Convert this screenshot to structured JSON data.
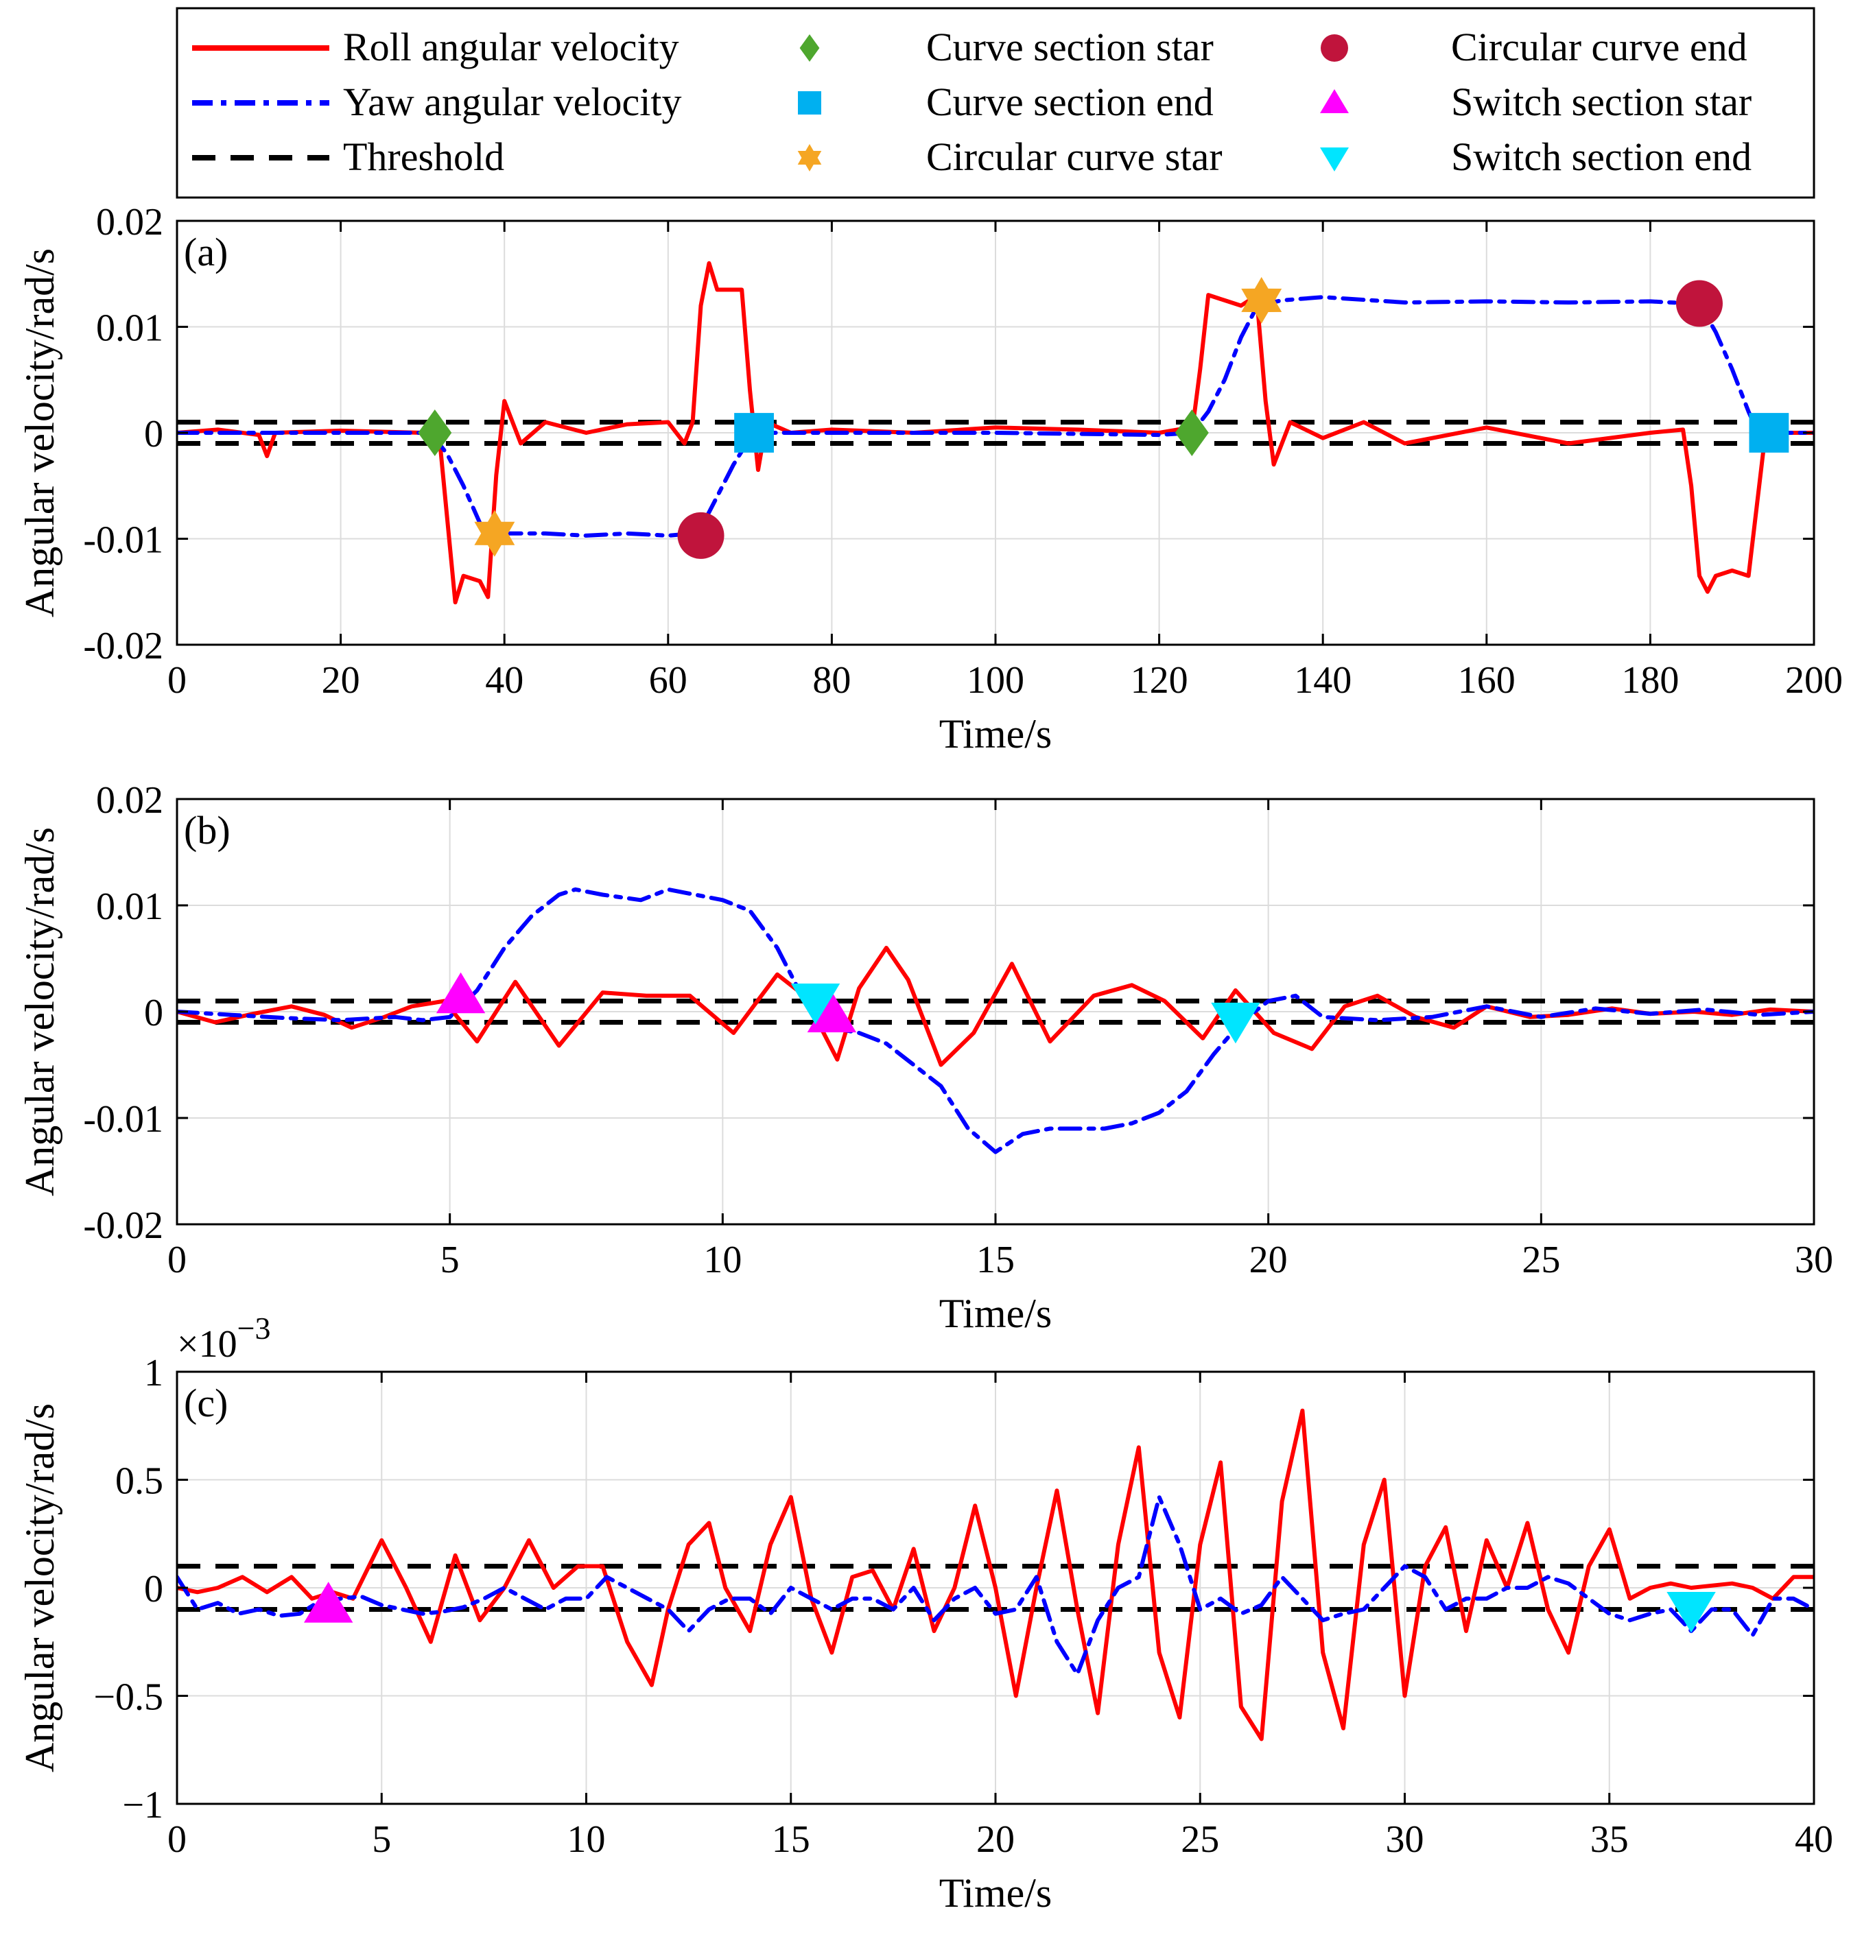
{
  "legend": {
    "entries": [
      {
        "label": "Roll angular velocity",
        "kind": "line",
        "color": "#ff0000",
        "dash": "solid"
      },
      {
        "label": "Yaw angular velocity",
        "kind": "line",
        "color": "#0000ff",
        "dash": "dashdot"
      },
      {
        "label": "Threshold",
        "kind": "line",
        "color": "#000000",
        "dash": "dashed"
      },
      {
        "label": "Curve section star",
        "kind": "marker",
        "marker": "diamond",
        "color": "#4ea72e"
      },
      {
        "label": "Curve section end",
        "kind": "marker",
        "marker": "square",
        "color": "#00b0f0"
      },
      {
        "label": "Circular curve star",
        "kind": "marker",
        "marker": "hexagram",
        "color": "#f5a623"
      },
      {
        "label": "Circular curve end",
        "kind": "marker",
        "marker": "circle",
        "color": "#c0143c"
      },
      {
        "label": "Switch section star",
        "kind": "marker",
        "marker": "triangle-up",
        "color": "#ff00ff"
      },
      {
        "label": "Switch section end",
        "kind": "marker",
        "marker": "triangle-down",
        "color": "#00e5ff"
      }
    ]
  },
  "chart_data": [
    {
      "type": "line",
      "panel_label": "(a)",
      "xlabel": "Time/s",
      "ylabel": "Angular velocity/rad/s",
      "xlim": [
        0,
        200
      ],
      "ylim": [
        -0.02,
        0.02
      ],
      "xticks": [
        0,
        20,
        40,
        60,
        80,
        100,
        120,
        140,
        160,
        180,
        200
      ],
      "xtick_labels": [
        "0",
        "20",
        "40",
        "60",
        "80",
        "100",
        "120",
        "140",
        "160",
        "180",
        "200"
      ],
      "yticks": [
        -0.02,
        -0.01,
        0,
        0.01,
        0.02
      ],
      "ytick_labels": [
        "-0.02",
        "-0.01",
        "0",
        "0.01",
        "0.02"
      ],
      "grid": true,
      "thresholds": [
        0.001,
        -0.001
      ],
      "series": [
        {
          "name": "Roll angular velocity",
          "color": "#ff0000",
          "style": "solid",
          "x": [
            0,
            5,
            10,
            11,
            12,
            20,
            30,
            31,
            32,
            33,
            34,
            35,
            37,
            38,
            39,
            40,
            42,
            45,
            50,
            55,
            60,
            62,
            63,
            64,
            65,
            66,
            67,
            69,
            70,
            71,
            72,
            75,
            80,
            90,
            100,
            110,
            120,
            123,
            124,
            125,
            126,
            128,
            130,
            131,
            132,
            133,
            134,
            136,
            140,
            145,
            150,
            160,
            170,
            180,
            184,
            185,
            186,
            187,
            188,
            190,
            192,
            193,
            194,
            195,
            196,
            200
          ],
          "y": [
            0,
            0.0003,
            -0.0002,
            -0.0022,
            0,
            0.0002,
            0,
            0.0001,
            0,
            -0.008,
            -0.016,
            -0.0135,
            -0.014,
            -0.0155,
            -0.004,
            0.003,
            -0.001,
            0.001,
            0,
            0.0008,
            0.001,
            -0.001,
            0.001,
            0.012,
            0.016,
            0.0135,
            0.0135,
            0.0135,
            0.004,
            -0.0035,
            0.001,
            0,
            0.0003,
            0,
            0.0005,
            0.0003,
            0,
            0.0004,
            0,
            0.006,
            0.013,
            0.0125,
            0.012,
            0.0125,
            0.012,
            0.003,
            -0.003,
            0.001,
            -0.0005,
            0.001,
            -0.001,
            0.0005,
            -0.001,
            0,
            0.0003,
            -0.005,
            -0.0135,
            -0.015,
            -0.0135,
            -0.013,
            -0.0135,
            -0.007,
            -0.0005,
            0.0005,
            0,
            0
          ]
        },
        {
          "name": "Yaw angular velocity",
          "color": "#0000ff",
          "style": "dashdot",
          "x": [
            0,
            20,
            31,
            33,
            35,
            37,
            38,
            40,
            45,
            50,
            55,
            60,
            63,
            64,
            66,
            68,
            70,
            71,
            80,
            100,
            120,
            124,
            126,
            128,
            130,
            132,
            135,
            140,
            150,
            160,
            170,
            180,
            185,
            186,
            188,
            190,
            192,
            193,
            194,
            200
          ],
          "y": [
            0,
            0,
            0,
            -0.002,
            -0.005,
            -0.0085,
            -0.0095,
            -0.0095,
            -0.0095,
            -0.0097,
            -0.0095,
            -0.0097,
            -0.0095,
            -0.009,
            -0.006,
            -0.003,
            -0.0005,
            0,
            0,
            0,
            -0.0002,
            0,
            0.002,
            0.005,
            0.009,
            0.012,
            0.0125,
            0.0128,
            0.0123,
            0.0124,
            0.0123,
            0.0124,
            0.0122,
            0.0122,
            0.0095,
            0.006,
            0.002,
            0.0003,
            0,
            0
          ]
        }
      ],
      "markers": [
        {
          "legend": "Curve section star",
          "x": [
            31.5,
            124
          ],
          "y": [
            0,
            0
          ]
        },
        {
          "legend": "Circular curve star",
          "x": [
            38.8,
            132.5
          ],
          "y": [
            -0.0095,
            0.0125
          ]
        },
        {
          "legend": "Circular curve end",
          "x": [
            64,
            186
          ],
          "y": [
            -0.0097,
            0.0122
          ]
        },
        {
          "legend": "Curve section end",
          "x": [
            70.5,
            194.5
          ],
          "y": [
            0,
            0
          ]
        }
      ]
    },
    {
      "type": "line",
      "panel_label": "(b)",
      "xlabel": "Time/s",
      "ylabel": "Angular velocity/rad/s",
      "xlim": [
        0,
        30
      ],
      "ylim": [
        -0.02,
        0.02
      ],
      "xticks": [
        0,
        5,
        10,
        15,
        20,
        25,
        30
      ],
      "xtick_labels": [
        "0",
        "5",
        "10",
        "15",
        "20",
        "25",
        "30"
      ],
      "yticks": [
        -0.02,
        -0.01,
        0,
        0.01,
        0.02
      ],
      "ytick_labels": [
        "-0.02",
        "-0.01",
        "0",
        "0.01",
        "0.02"
      ],
      "grid": true,
      "thresholds": [
        0.001,
        -0.001
      ],
      "series": [
        {
          "name": "Roll angular velocity",
          "color": "#ff0000",
          "style": "solid",
          "x": [
            0,
            0.7,
            1.4,
            2.1,
            2.7,
            3.2,
            3.8,
            4.3,
            4.9,
            5.5,
            6.2,
            7.0,
            7.8,
            8.6,
            9.4,
            10.2,
            11.0,
            11.5,
            12.1,
            12.5,
            13.0,
            13.4,
            14.0,
            14.6,
            15.3,
            16.0,
            16.8,
            17.5,
            18.1,
            18.8,
            19.4,
            20.1,
            20.8,
            21.4,
            22.0,
            22.7,
            23.4,
            24.0,
            24.8,
            25.5,
            26.3,
            27.0,
            27.8,
            28.5,
            29.2,
            30
          ],
          "y": [
            0,
            -0.001,
            -0.0002,
            0.0005,
            -0.0003,
            -0.0015,
            -0.0005,
            0.0005,
            0.001,
            -0.0028,
            0.0028,
            -0.0032,
            0.0018,
            0.0015,
            0.0015,
            -0.002,
            0.0035,
            0.0015,
            -0.0045,
            0.0022,
            0.006,
            0.003,
            -0.005,
            -0.002,
            0.0045,
            -0.0028,
            0.0015,
            0.0025,
            0.001,
            -0.0025,
            0.002,
            -0.002,
            -0.0035,
            0.0005,
            0.0015,
            -0.0005,
            -0.0015,
            0.0005,
            -0.0005,
            -0.0003,
            0.0003,
            -0.0002,
            0,
            -0.0003,
            0.0002,
            0
          ]
        },
        {
          "name": "Yaw angular velocity",
          "color": "#0000ff",
          "style": "dashdot",
          "x": [
            0,
            1,
            2,
            3,
            4,
            4.5,
            5,
            5.5,
            6,
            6.5,
            7,
            7.3,
            7.8,
            8.5,
            9,
            9.5,
            10,
            10.5,
            11,
            11.5,
            12,
            12.5,
            13,
            13.5,
            14,
            14.5,
            15,
            15.5,
            16,
            17,
            17.5,
            18,
            18.5,
            19,
            19.5,
            20,
            20.5,
            21,
            22,
            23,
            24,
            25,
            26,
            27,
            28,
            29,
            30
          ],
          "y": [
            0,
            -0.0003,
            -0.0006,
            -0.0008,
            -0.0005,
            -0.0008,
            -0.0005,
            0.002,
            0.006,
            0.009,
            0.011,
            0.0115,
            0.011,
            0.0105,
            0.0115,
            0.011,
            0.0105,
            0.0095,
            0.006,
            0.001,
            -0.0015,
            -0.002,
            -0.003,
            -0.005,
            -0.007,
            -0.011,
            -0.0132,
            -0.0115,
            -0.011,
            -0.011,
            -0.0105,
            -0.0095,
            -0.0075,
            -0.004,
            -0.001,
            0.001,
            0.0015,
            -0.0005,
            -0.0008,
            -0.0005,
            0.0005,
            -0.0005,
            0.0003,
            -0.0002,
            0.0002,
            -0.0003,
            0
          ]
        }
      ],
      "markers": [
        {
          "legend": "Switch section star",
          "x": [
            5.2,
            12.0
          ],
          "y": [
            0.0015,
            -0.0003
          ]
        },
        {
          "legend": "Switch section end",
          "x": [
            11.7,
            19.4
          ],
          "y": [
            0.001,
            -0.0008
          ]
        }
      ]
    },
    {
      "type": "line",
      "panel_label": "(c)",
      "xlabel": "Time/s",
      "ylabel": "Angular velocity/rad/s",
      "y_exponent_label": "×10",
      "y_exponent": "−3",
      "xlim": [
        0,
        40
      ],
      "ylim": [
        -1,
        1
      ],
      "xticks": [
        0,
        5,
        10,
        15,
        20,
        25,
        30,
        35,
        40
      ],
      "xtick_labels": [
        "0",
        "5",
        "10",
        "15",
        "20",
        "25",
        "30",
        "35",
        "40"
      ],
      "yticks": [
        -1,
        -0.5,
        0,
        0.5,
        1
      ],
      "ytick_labels": [
        "−1",
        "−0.5",
        "0",
        "0.5",
        "1"
      ],
      "grid": true,
      "thresholds": [
        0.1,
        -0.1
      ],
      "series": [
        {
          "name": "Roll angular velocity",
          "color": "#ff0000",
          "style": "solid",
          "x": [
            0,
            0.5,
            1.0,
            1.6,
            2.2,
            2.8,
            3.3,
            3.8,
            4.3,
            5.0,
            5.6,
            6.2,
            6.8,
            7.4,
            8.0,
            8.6,
            9.2,
            9.8,
            10.4,
            11.0,
            11.6,
            12.0,
            12.5,
            13.0,
            13.4,
            14.0,
            14.5,
            15.0,
            15.5,
            16.0,
            16.5,
            17.0,
            17.5,
            18.0,
            18.5,
            19.0,
            19.5,
            20.0,
            20.5,
            21.0,
            21.5,
            22.0,
            22.5,
            23.0,
            23.5,
            24.0,
            24.5,
            25.0,
            25.5,
            26.0,
            26.5,
            27.0,
            27.5,
            28.0,
            28.5,
            29.0,
            29.5,
            30.0,
            30.5,
            31.0,
            31.5,
            32.0,
            32.5,
            33.0,
            33.5,
            34.0,
            34.5,
            35.0,
            35.5,
            36.0,
            36.5,
            37.0,
            37.5,
            38.0,
            38.5,
            39.0,
            39.5,
            40
          ],
          "y": [
            0,
            -0.02,
            0.0,
            0.05,
            -0.02,
            0.05,
            -0.05,
            -0.02,
            -0.05,
            0.22,
            0.0,
            -0.25,
            0.15,
            -0.15,
            0.0,
            0.22,
            0.0,
            0.1,
            0.1,
            -0.25,
            -0.45,
            -0.1,
            0.2,
            0.3,
            0.0,
            -0.2,
            0.2,
            0.42,
            -0.05,
            -0.3,
            0.05,
            0.08,
            -0.1,
            0.18,
            -0.2,
            0.0,
            0.38,
            0.0,
            -0.5,
            0.0,
            0.45,
            -0.1,
            -0.58,
            0.2,
            0.65,
            -0.3,
            -0.6,
            0.2,
            0.58,
            -0.55,
            -0.7,
            0.4,
            0.82,
            -0.3,
            -0.65,
            0.2,
            0.5,
            -0.5,
            0.1,
            0.28,
            -0.2,
            0.22,
            0.0,
            0.3,
            -0.1,
            -0.3,
            0.1,
            0.27,
            -0.05,
            0.0,
            0.02,
            0.0,
            0.01,
            0.02,
            0.0,
            -0.05,
            0.05,
            0.05
          ]
        },
        {
          "name": "Yaw angular velocity",
          "color": "#0000ff",
          "style": "dashdot",
          "x": [
            0,
            0.5,
            1.0,
            1.5,
            2.0,
            2.5,
            3.0,
            3.5,
            4.0,
            4.5,
            5.0,
            5.5,
            6.0,
            6.5,
            7.0,
            7.5,
            8.0,
            8.5,
            9.0,
            9.5,
            10.0,
            10.5,
            11.0,
            11.5,
            12.0,
            12.5,
            13.0,
            13.5,
            14.0,
            14.5,
            15.0,
            15.5,
            16.0,
            16.5,
            17.0,
            17.5,
            18.0,
            18.5,
            19.0,
            19.5,
            20.0,
            20.5,
            21.0,
            21.5,
            22.0,
            22.5,
            23.0,
            23.5,
            24.0,
            24.5,
            25.0,
            25.5,
            26.0,
            26.5,
            27.0,
            27.5,
            28.0,
            28.5,
            29.0,
            29.5,
            30.0,
            30.5,
            31.0,
            31.5,
            32.0,
            32.5,
            33.0,
            33.5,
            34.0,
            34.5,
            35.0,
            35.5,
            36.0,
            36.5,
            37.0,
            37.5,
            38.0,
            38.5,
            39.0,
            39.5,
            40
          ],
          "y": [
            0.05,
            -0.1,
            -0.07,
            -0.12,
            -0.1,
            -0.13,
            -0.12,
            -0.06,
            -0.05,
            -0.04,
            -0.08,
            -0.1,
            -0.12,
            -0.11,
            -0.09,
            -0.05,
            0.0,
            -0.05,
            -0.1,
            -0.05,
            -0.05,
            0.05,
            0.0,
            -0.05,
            -0.1,
            -0.2,
            -0.1,
            -0.05,
            -0.05,
            -0.12,
            0.0,
            -0.05,
            -0.1,
            -0.05,
            -0.05,
            -0.1,
            0.0,
            -0.15,
            -0.05,
            0.0,
            -0.12,
            -0.1,
            0.05,
            -0.25,
            -0.4,
            -0.15,
            0.0,
            0.05,
            0.42,
            0.2,
            -0.1,
            -0.05,
            -0.12,
            -0.08,
            0.05,
            -0.05,
            -0.15,
            -0.12,
            -0.1,
            0.0,
            0.1,
            0.05,
            -0.1,
            -0.05,
            -0.05,
            0.0,
            0.0,
            0.05,
            0.02,
            -0.05,
            -0.12,
            -0.15,
            -0.12,
            -0.1,
            -0.2,
            -0.1,
            -0.1,
            -0.22,
            -0.05,
            -0.05,
            -0.1
          ]
        }
      ],
      "markers": [
        {
          "legend": "Switch section star",
          "x": [
            3.7
          ],
          "y": [
            -0.08
          ]
        },
        {
          "legend": "Switch section end",
          "x": [
            37.0
          ],
          "y": [
            -0.1
          ]
        }
      ]
    }
  ]
}
